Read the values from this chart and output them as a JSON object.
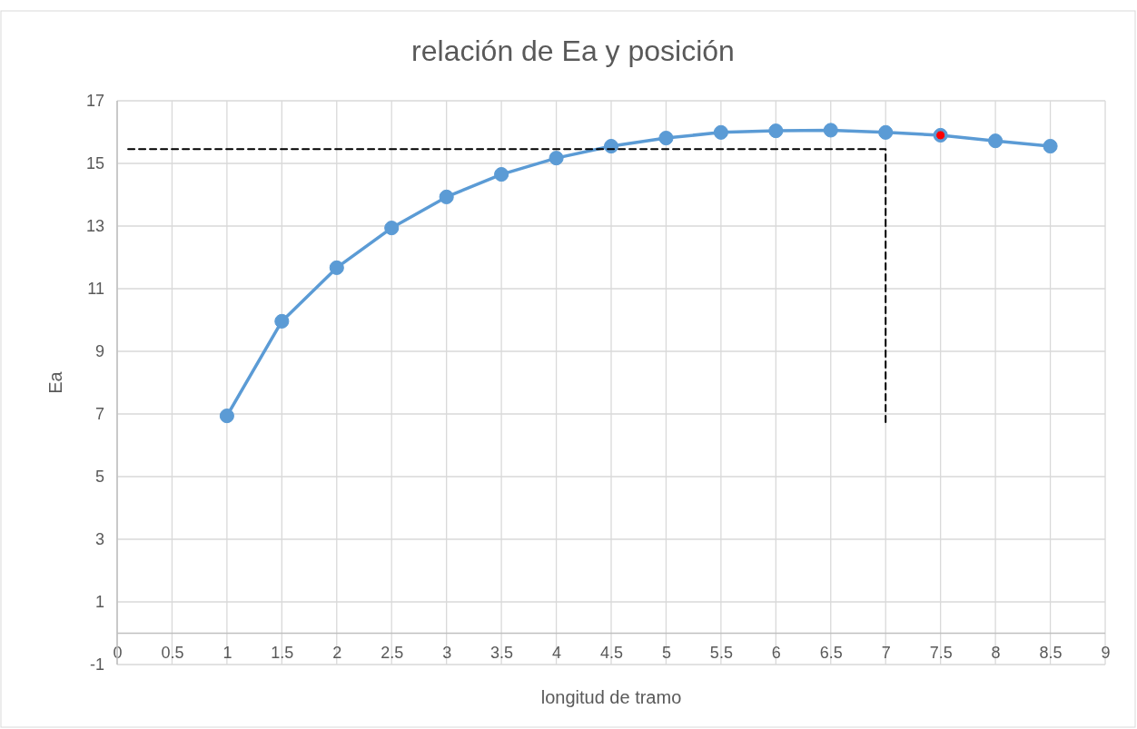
{
  "chart_data": {
    "type": "line",
    "title": "relación de Ea y posición",
    "xlabel": "longitud de tramo",
    "ylabel": "Ea",
    "xlim": [
      0,
      9
    ],
    "xticks": [
      0,
      0.5,
      1,
      1.5,
      2,
      2.5,
      3,
      3.5,
      4,
      4.5,
      5,
      5.5,
      6,
      6.5,
      7,
      7.5,
      8,
      8.5,
      9
    ],
    "ylim": [
      -1,
      17
    ],
    "yticks": [
      -1,
      1,
      3,
      5,
      7,
      9,
      11,
      13,
      15,
      17
    ],
    "grid": true,
    "marker": "circle",
    "line_style": "solid",
    "series": [
      {
        "color": "#5b9bd5",
        "x": [
          1,
          1.5,
          2,
          2.5,
          3,
          3.5,
          4,
          4.5,
          5,
          5.5,
          6,
          6.5,
          7,
          7.5,
          8,
          8.5
        ],
        "values": [
          6.94,
          9.96,
          11.67,
          12.94,
          13.93,
          14.65,
          15.17,
          15.55,
          15.81,
          15.99,
          16.04,
          16.06,
          15.99,
          15.9,
          15.72,
          15.55
        ]
      },
      {
        "color": "#000000",
        "marker": "none",
        "line_style": "dashed",
        "x": [
          0.1,
          7,
          7
        ],
        "values": [
          15.46,
          15.46,
          6.6
        ]
      },
      {
        "type": "scatter",
        "color": "#ff0000",
        "x": [
          7.5
        ],
        "values": [
          15.9
        ]
      }
    ]
  }
}
